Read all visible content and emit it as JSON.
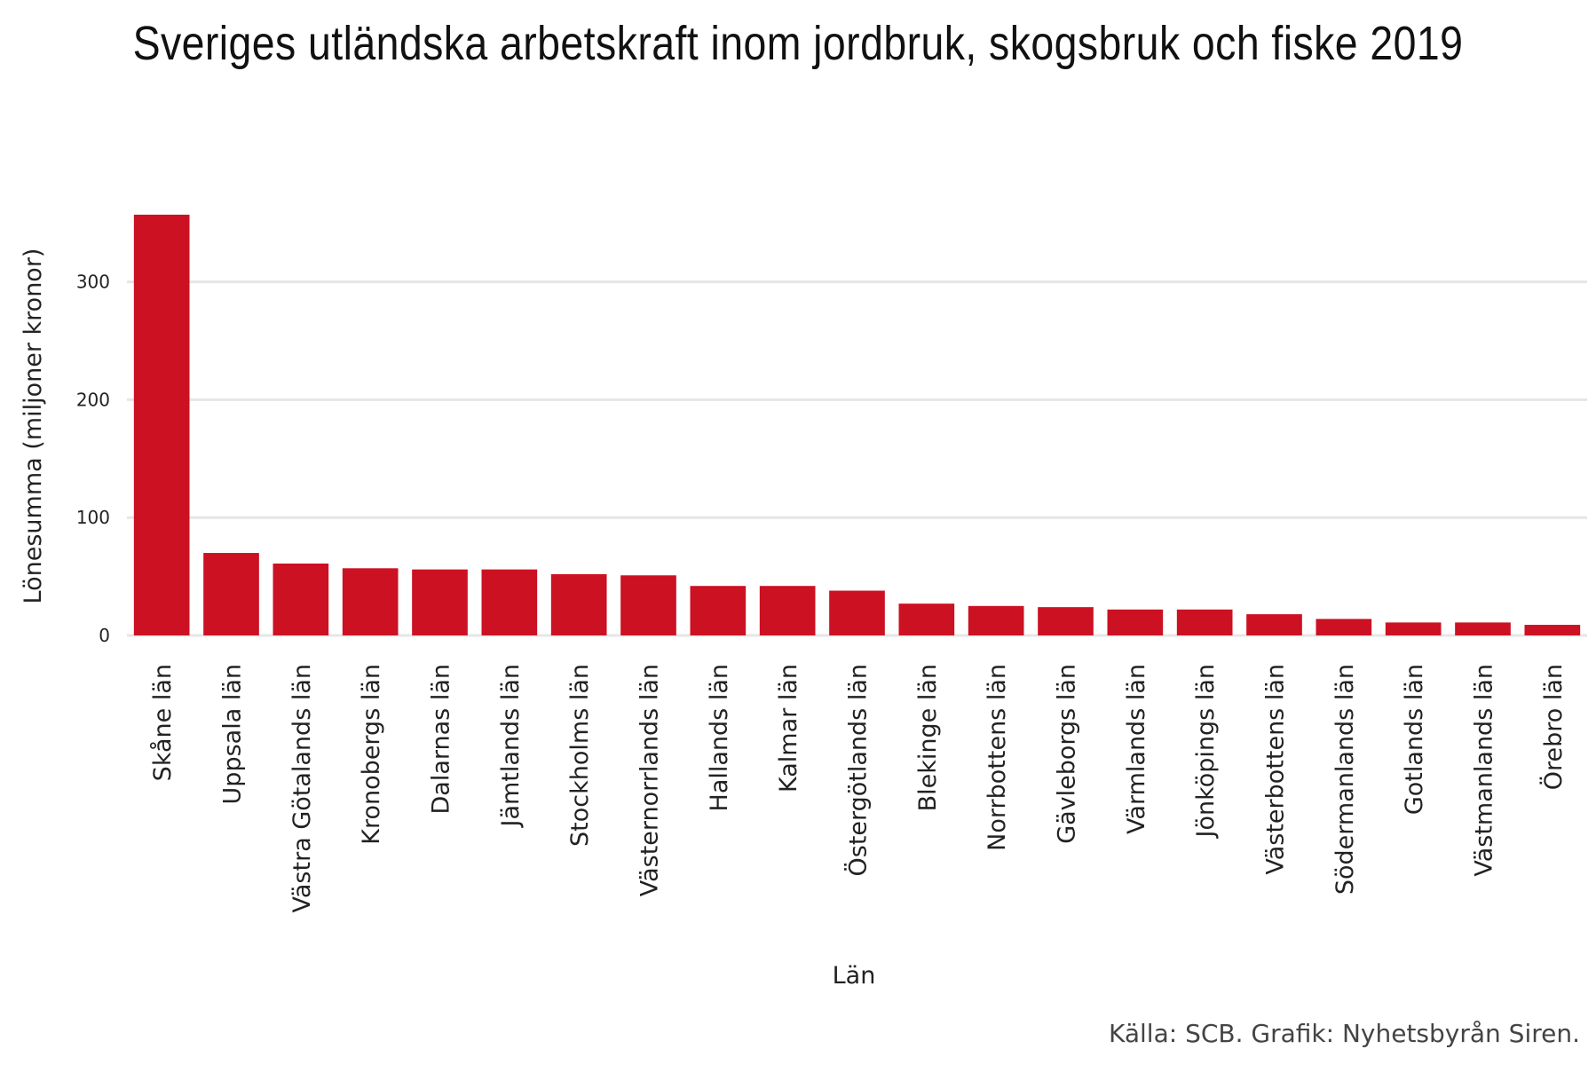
{
  "chart_data": {
    "type": "bar",
    "title": "Sveriges utländska arbetskraft inom jordbruk, skogsbruk och fiske 2019",
    "xlabel": "Län",
    "ylabel": "Lönesumma (miljoner kronor)",
    "categories": [
      "Skåne län",
      "Uppsala län",
      "Västra Götalands län",
      "Kronobergs län",
      "Dalarnas län",
      "Jämtlands län",
      "Stockholms län",
      "Västernorrlands län",
      "Hallands län",
      "Kalmar län",
      "Östergötlands län",
      "Blekinge län",
      "Norrbottens län",
      "Gävleborgs län",
      "Värmlands län",
      "Jönköpings län",
      "Västerbottens län",
      "Södermanlands län",
      "Gotlands län",
      "Västmanlands län",
      "Örebro län"
    ],
    "values": [
      357,
      70,
      61,
      57,
      56,
      56,
      52,
      51,
      42,
      42,
      38,
      27,
      25,
      24,
      22,
      22,
      18,
      14,
      11,
      11,
      9
    ],
    "yticks": [
      0,
      100,
      200,
      300
    ],
    "ylim": [
      0,
      360
    ],
    "grid": true,
    "bar_color": "#cc1122",
    "grid_color": "#e6e6e6"
  },
  "source": "Källa: SCB. Grafik: Nyhetsbyrån Siren."
}
